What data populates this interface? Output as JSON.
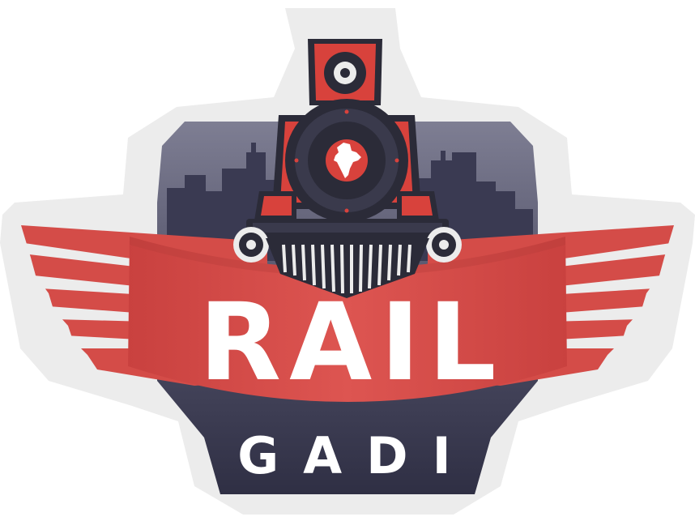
{
  "logo": {
    "title": "RAIL",
    "subtitle": "GADI"
  },
  "colors": {
    "outline": "#ececec",
    "badge_top": "#7d7d92",
    "badge_dark": "#34344a",
    "city": "#3b3b52",
    "ribbon": "#d84f4b",
    "ribbon_dark": "#b53d3a",
    "engine_dark": "#2b2b38",
    "engine_red": "#d8423c",
    "text": "#ffffff"
  },
  "icons": [
    "locomotive-icon",
    "india-map-icon",
    "city-skyline-icon",
    "wing-icon"
  ]
}
